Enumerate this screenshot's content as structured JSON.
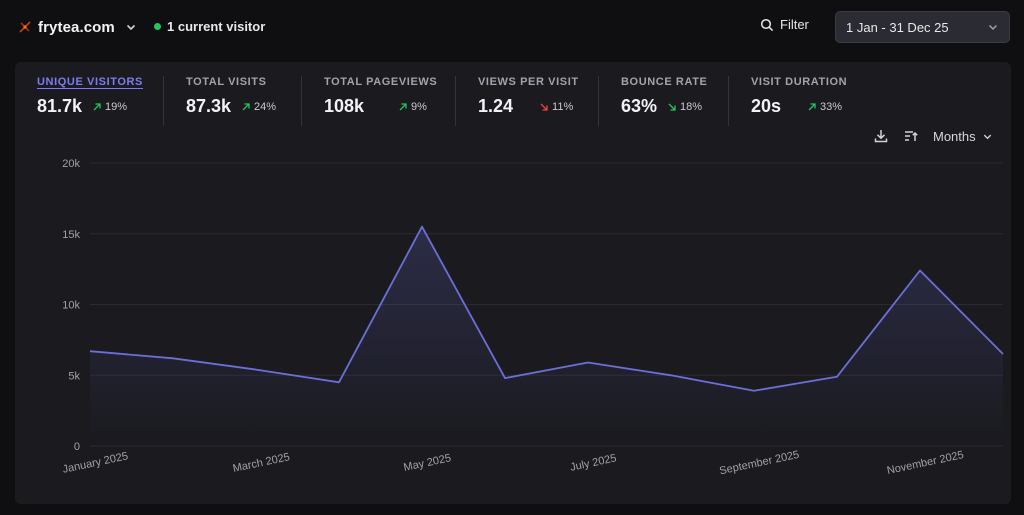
{
  "header": {
    "site_name": "frytea.com",
    "live_visitors": "1 current visitor",
    "filter_label": "Filter",
    "date_range": "1 Jan - 31 Dec 25",
    "live_color": "#22c55e"
  },
  "metrics": [
    {
      "label": "Unique visitors",
      "value": "81.7k",
      "change": "19%",
      "direction": "up"
    },
    {
      "label": "Total visits",
      "value": "87.3k",
      "change": "24%",
      "direction": "up"
    },
    {
      "label": "Total pageviews",
      "value": "108k",
      "change": "9%",
      "direction": "up"
    },
    {
      "label": "Views per visit",
      "value": "1.24",
      "change": "11%",
      "direction": "down"
    },
    {
      "label": "Bounce rate",
      "value": "63%",
      "change": "18%",
      "direction": "down-good"
    },
    {
      "label": "Visit duration",
      "value": "20s",
      "change": "33%",
      "direction": "up"
    }
  ],
  "toolbar": {
    "interval_label": "Months",
    "download_icon": "download-icon",
    "import_icon": "sort-import-icon"
  },
  "colors": {
    "accent": "#7c7cf0",
    "line": "#6b6fd6",
    "up": "#22c55e",
    "down": "#ef4444"
  },
  "chart_data": {
    "type": "area",
    "title": "",
    "xlabel": "",
    "ylabel": "",
    "ylim": [
      0,
      20000
    ],
    "yticks": [
      0,
      5000,
      10000,
      15000,
      20000
    ],
    "ytick_labels": [
      "0",
      "5k",
      "10k",
      "15k",
      "20k"
    ],
    "x": [
      "January 2025",
      "February 2025",
      "March 2025",
      "April 2025",
      "May 2025",
      "June 2025",
      "July 2025",
      "August 2025",
      "September 2025",
      "October 2025",
      "November 2025",
      "December 2025"
    ],
    "xtick_labels": [
      "January 2025",
      "",
      "March 2025",
      "",
      "May 2025",
      "",
      "July 2025",
      "",
      "September 2025",
      "",
      "November 2025",
      ""
    ],
    "series": [
      {
        "name": "Unique visitors",
        "values": [
          6700,
          6200,
          5400,
          4500,
          15500,
          4800,
          5900,
          5000,
          3900,
          4900,
          12400,
          6500
        ]
      }
    ],
    "grid": true
  }
}
